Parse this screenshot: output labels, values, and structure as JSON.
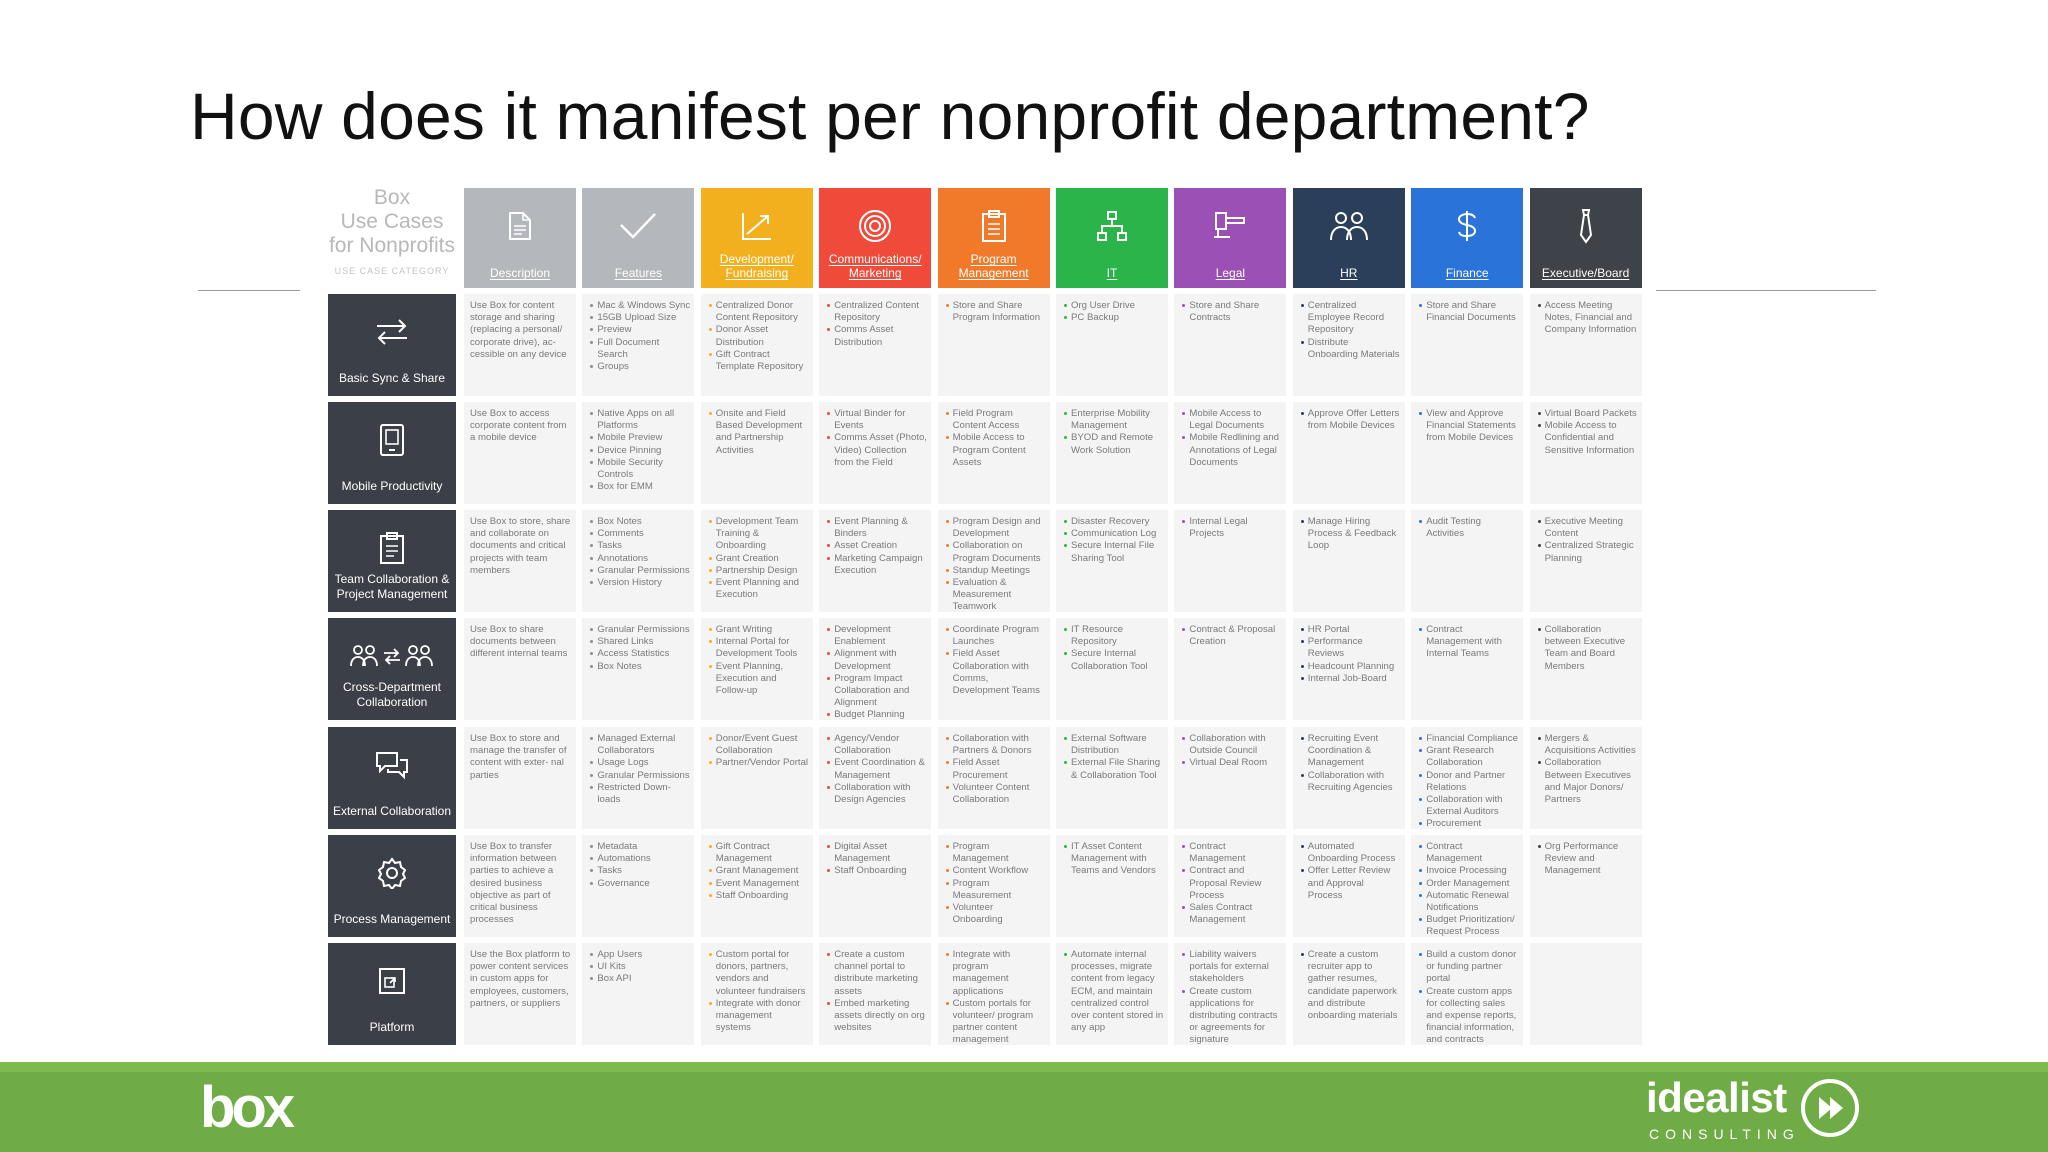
{
  "title": "How does it manifest per nonprofit department?",
  "corner": {
    "lines": [
      "Box",
      "Use Cases",
      "for Nonprofits"
    ],
    "caption": "USE CASE CATEGORY"
  },
  "columns": [
    {
      "label": "Description",
      "color": "#b4b8bd",
      "icon": "document-icon"
    },
    {
      "label": "Features",
      "color": "#b4b8bd",
      "icon": "checkmark-icon"
    },
    {
      "label": "Development/ Fundraising",
      "color": "#f2b01e",
      "icon": "growth-arrow-icon"
    },
    {
      "label": "Communications/ Marketing",
      "color": "#ef4a3a",
      "icon": "target-icon"
    },
    {
      "label": "Program Management",
      "color": "#f07a2a",
      "icon": "clipboard-icon"
    },
    {
      "label": "IT",
      "color": "#2ab44a",
      "icon": "network-icon"
    },
    {
      "label": "Legal",
      "color": "#9b50b6",
      "icon": "gavel-icon"
    },
    {
      "label": "HR",
      "color": "#2b3f5a",
      "icon": "people-icon"
    },
    {
      "label": "Finance",
      "color": "#2a73d9",
      "icon": "dollar-icon"
    },
    {
      "label": "Executive/Board",
      "color": "#3e4349",
      "icon": "tie-icon"
    }
  ],
  "rows": [
    {
      "label": "Basic Sync & Share",
      "icon": "sync-arrows-icon",
      "cells": [
        {
          "text": "Use Box for content storage and sharing (replacing a personal/ corporate drive), ac- cessible on any device"
        },
        {
          "items": [
            "Mac & Windows Sync",
            "15GB Upload Size",
            "Preview",
            "Full Document Search",
            "Groups"
          ]
        },
        {
          "items": [
            "Centralized Donor Content Repository",
            "Donor Asset Distribution",
            "Gift Contract Template Repository"
          ]
        },
        {
          "items": [
            "Centralized Content Repository",
            "Comms Asset Distribution"
          ]
        },
        {
          "items": [
            "Store and Share Program Information"
          ]
        },
        {
          "items": [
            "Org User Drive",
            "PC Backup"
          ]
        },
        {
          "items": [
            "Store and Share Contracts"
          ]
        },
        {
          "items": [
            "Centralized Employee Record Repository",
            "Distribute Onboarding Materials"
          ]
        },
        {
          "items": [
            "Store and Share Financial Documents"
          ]
        },
        {
          "items": [
            "Access Meeting Notes, Financial and Company Information"
          ]
        }
      ]
    },
    {
      "label": "Mobile Productivity",
      "icon": "mobile-device-icon",
      "cells": [
        {
          "text": "Use Box to access corporate content from a mobile device"
        },
        {
          "items": [
            "Native Apps on all Platforms",
            "Mobile Preview",
            "Device Pinning",
            "Mobile Security Controls",
            "Box for EMM"
          ]
        },
        {
          "items": [
            "Onsite and Field Based Development and Partnership Activities"
          ]
        },
        {
          "items": [
            "Virtual Binder for Events",
            "Comms Asset (Photo, Video) Collection from the Field"
          ]
        },
        {
          "items": [
            "Field Program Content Access",
            "Mobile Access to Program Content Assets"
          ]
        },
        {
          "items": [
            "Enterprise Mobility Management",
            "BYOD and Remote Work Solution"
          ]
        },
        {
          "items": [
            "Mobile Access to Legal Documents",
            "Mobile Redlining and Annotations of Legal Documents"
          ]
        },
        {
          "items": [
            "Approve Offer Letters from Mobile Devices"
          ]
        },
        {
          "items": [
            "View and Approve Financial Statements from Mobile Devices"
          ]
        },
        {
          "items": [
            "Virtual Board Packets",
            "Mobile Access to Confidential and Sensitive Information"
          ]
        }
      ]
    },
    {
      "label": "Team Collaboration & Project Management",
      "icon": "clipboard-list-icon",
      "cells": [
        {
          "text": "Use Box to store, share and collaborate on documents and critical projects with team members"
        },
        {
          "items": [
            "Box Notes",
            "Comments",
            "Tasks",
            "Annotations",
            "Granular Permissions",
            "Version History"
          ]
        },
        {
          "items": [
            "Development Team Training & Onboarding",
            "Grant Creation",
            "Partnership Design",
            "Event Planning and Execution"
          ]
        },
        {
          "items": [
            "Event Planning & Binders",
            "Asset Creation",
            "Marketing Campaign Execution"
          ]
        },
        {
          "items": [
            "Program Design and Development",
            "Collaboration on Program Documents",
            "Standup Meetings",
            "Evaluation & Measurement Teamwork"
          ]
        },
        {
          "items": [
            "Disaster Recovery",
            "Communication Log",
            "Secure Internal File Sharing Tool"
          ]
        },
        {
          "items": [
            "Internal Legal Projects"
          ]
        },
        {
          "items": [
            "Manage Hiring Process & Feedback Loop"
          ]
        },
        {
          "items": [
            "Audit Testing Activities"
          ]
        },
        {
          "items": [
            "Executive Meeting Content",
            "Centralized Strategic Planning"
          ]
        }
      ]
    },
    {
      "label": "Cross-Department Collaboration",
      "icon": "groups-exchange-icon",
      "cells": [
        {
          "text": "Use Box to share documents between different internal teams"
        },
        {
          "items": [
            "Granular Permissions",
            "Shared Links",
            "Access Statistics",
            "Box Notes"
          ]
        },
        {
          "items": [
            "Grant Writing",
            "Internal Portal for Development Tools",
            "Event Planning, Execution and Follow-up"
          ]
        },
        {
          "items": [
            "Development Enablement",
            "Alignment with Development",
            "Program Impact Collaboration and Alignment",
            "Budget Planning"
          ]
        },
        {
          "items": [
            "Coordinate Program Launches",
            "Field Asset Collaboration with Comms, Development Teams"
          ]
        },
        {
          "items": [
            "IT Resource Repository",
            "Secure Internal Collaboration Tool"
          ]
        },
        {
          "items": [
            "Contract & Proposal Creation"
          ]
        },
        {
          "items": [
            "HR Portal",
            "Performance Reviews",
            "Headcount Planning",
            "Internal Job-Board"
          ]
        },
        {
          "items": [
            "Contract Management with Internal Teams"
          ]
        },
        {
          "items": [
            "Collaboration between Executive Team and Board Members"
          ]
        }
      ]
    },
    {
      "label": "External Collaboration",
      "icon": "chat-bubbles-icon",
      "cells": [
        {
          "text": "Use Box to store and manage the transfer of content with exter- nal parties"
        },
        {
          "items": [
            "Managed External Collaborators",
            "Usage Logs",
            "Granular Permissions",
            "Restricted Down- loads"
          ]
        },
        {
          "items": [
            "Donor/Event Guest Collaboration",
            "Partner/Vendor Portal"
          ]
        },
        {
          "items": [
            "Agency/Vendor Collaboration",
            "Event Coordination & Management",
            "Collaboration with Design Agencies"
          ]
        },
        {
          "items": [
            "Collaboration with Partners & Donors",
            "Field Asset Procurement",
            "Volunteer Content Collaboration"
          ]
        },
        {
          "items": [
            "External Software Distribution",
            "External File Sharing & Collaboration Tool"
          ]
        },
        {
          "items": [
            "Collaboration with Outside Council",
            "Virtual Deal Room"
          ]
        },
        {
          "items": [
            "Recruiting Event Coordination & Management",
            "Collaboration with Recruiting Agencies"
          ]
        },
        {
          "items": [
            "Financial Compliance",
            "Grant Research Collaboration",
            "Donor and Partner Relations",
            "Collaboration with External Auditors",
            "Procurement Activities"
          ]
        },
        {
          "items": [
            "Mergers & Acquisitions Activities",
            "Collaboration Between Executives and Major Donors/ Partners"
          ]
        }
      ]
    },
    {
      "label": "Process Management",
      "icon": "gear-icon",
      "cells": [
        {
          "text": "Use Box to transfer information between parties to achieve a desired business objective as part of critical business processes"
        },
        {
          "items": [
            "Metadata",
            "Automations",
            "Tasks",
            "Governance"
          ]
        },
        {
          "items": [
            "Gift Contract Management",
            "Grant Management",
            "Event Management",
            "Staff Onboarding"
          ]
        },
        {
          "items": [
            "Digital Asset Management",
            "Staff Onboarding"
          ]
        },
        {
          "items": [
            "Program Management",
            "Content Workflow",
            "Program Measurement",
            "Volunteer Onboarding"
          ]
        },
        {
          "items": [
            "IT Asset Content Management with Teams and Vendors"
          ]
        },
        {
          "items": [
            "Contract Management",
            "Contract and Proposal Review Process",
            "Sales Contract Management"
          ]
        },
        {
          "items": [
            "Automated Onboarding Process",
            "Offer Letter Review and Approval Process"
          ]
        },
        {
          "items": [
            "Contract Management",
            "Invoice Processing",
            "Order Management",
            "Automatic Renewal Notifications",
            "Budget Prioritization/ Request Process"
          ]
        },
        {
          "items": [
            "Org Performance Review and Management"
          ]
        }
      ]
    },
    {
      "label": "Platform",
      "icon": "platform-window-icon",
      "cells": [
        {
          "text": "Use the Box platform to power content services in custom apps for employees, customers, partners, or suppliers"
        },
        {
          "items": [
            "App Users",
            "UI Kits",
            "Box API"
          ]
        },
        {
          "items": [
            "Custom portal for donors, partners, vendors and volunteer fundraisers",
            "Integrate with donor management systems"
          ]
        },
        {
          "items": [
            "Create a custom channel portal to distribute marketing assets",
            "Embed marketing assets directly on org websites"
          ]
        },
        {
          "items": [
            "Integrate with program management applications",
            "Custom portals for volunteer/ program partner content management"
          ]
        },
        {
          "items": [
            "Automate internal processes, migrate content from legacy ECM, and maintain centralized control over content stored in any app"
          ]
        },
        {
          "items": [
            "Liability waivers portals for external stakeholders",
            "Create custom applications for distributing contracts or agreements for signature"
          ]
        },
        {
          "items": [
            "Create a custom recruiter app to gather resumes, candidate paperwork and distribute onboarding materials"
          ]
        },
        {
          "items": [
            "Build a custom donor or funding partner portal",
            "Create custom apps for collecting sales and expense reports, financial information, and contracts"
          ]
        },
        {
          "items": []
        }
      ]
    }
  ],
  "footer": {
    "left_logo": "box",
    "right_logo_word": "idealist",
    "right_logo_sub": "CONSULTING",
    "bar_color": "#6fac46"
  }
}
